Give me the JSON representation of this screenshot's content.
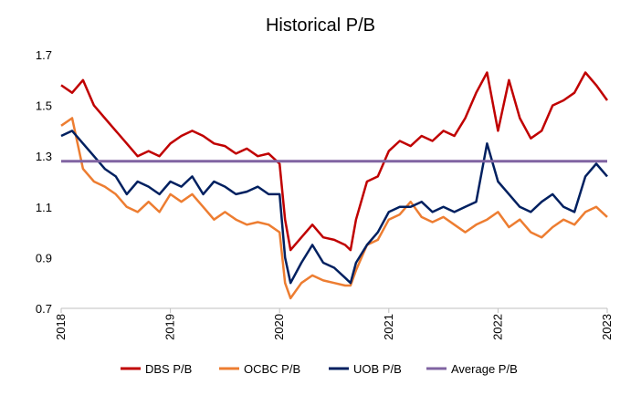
{
  "chart_data": {
    "type": "line",
    "title": "Historical P/B",
    "xlabel": "",
    "ylabel": "",
    "xlim": [
      2018,
      2023
    ],
    "ylim": [
      0.7,
      1.7
    ],
    "x_ticks": [
      "2018",
      "2019",
      "2020",
      "2021",
      "2022",
      "2023"
    ],
    "y_ticks": [
      "0.7",
      "0.9",
      "1.1",
      "1.3",
      "1.5",
      "1.7"
    ],
    "grid": false,
    "legend_position": "bottom",
    "series": [
      {
        "name": "DBS P/B",
        "color": "#c00000",
        "points": [
          [
            2018.0,
            1.58
          ],
          [
            2018.1,
            1.55
          ],
          [
            2018.2,
            1.6
          ],
          [
            2018.3,
            1.5
          ],
          [
            2018.4,
            1.45
          ],
          [
            2018.5,
            1.4
          ],
          [
            2018.6,
            1.35
          ],
          [
            2018.7,
            1.3
          ],
          [
            2018.8,
            1.32
          ],
          [
            2018.9,
            1.3
          ],
          [
            2019.0,
            1.35
          ],
          [
            2019.1,
            1.38
          ],
          [
            2019.2,
            1.4
          ],
          [
            2019.3,
            1.38
          ],
          [
            2019.4,
            1.35
          ],
          [
            2019.5,
            1.34
          ],
          [
            2019.6,
            1.31
          ],
          [
            2019.7,
            1.33
          ],
          [
            2019.8,
            1.3
          ],
          [
            2019.9,
            1.31
          ],
          [
            2020.0,
            1.27
          ],
          [
            2020.05,
            1.05
          ],
          [
            2020.1,
            0.93
          ],
          [
            2020.2,
            0.98
          ],
          [
            2020.3,
            1.03
          ],
          [
            2020.4,
            0.98
          ],
          [
            2020.5,
            0.97
          ],
          [
            2020.6,
            0.95
          ],
          [
            2020.65,
            0.93
          ],
          [
            2020.7,
            1.05
          ],
          [
            2020.8,
            1.2
          ],
          [
            2020.9,
            1.22
          ],
          [
            2021.0,
            1.32
          ],
          [
            2021.1,
            1.36
          ],
          [
            2021.2,
            1.34
          ],
          [
            2021.3,
            1.38
          ],
          [
            2021.4,
            1.36
          ],
          [
            2021.5,
            1.4
          ],
          [
            2021.6,
            1.38
          ],
          [
            2021.7,
            1.45
          ],
          [
            2021.8,
            1.55
          ],
          [
            2021.9,
            1.63
          ],
          [
            2022.0,
            1.4
          ],
          [
            2022.1,
            1.6
          ],
          [
            2022.2,
            1.45
          ],
          [
            2022.3,
            1.37
          ],
          [
            2022.4,
            1.4
          ],
          [
            2022.5,
            1.5
          ],
          [
            2022.6,
            1.52
          ],
          [
            2022.7,
            1.55
          ],
          [
            2022.8,
            1.63
          ],
          [
            2022.9,
            1.58
          ],
          [
            2023.0,
            1.52
          ]
        ]
      },
      {
        "name": "OCBC P/B",
        "color": "#ed7d31",
        "points": [
          [
            2018.0,
            1.42
          ],
          [
            2018.1,
            1.45
          ],
          [
            2018.2,
            1.25
          ],
          [
            2018.3,
            1.2
          ],
          [
            2018.4,
            1.18
          ],
          [
            2018.5,
            1.15
          ],
          [
            2018.6,
            1.1
          ],
          [
            2018.7,
            1.08
          ],
          [
            2018.8,
            1.12
          ],
          [
            2018.9,
            1.08
          ],
          [
            2019.0,
            1.15
          ],
          [
            2019.1,
            1.12
          ],
          [
            2019.2,
            1.15
          ],
          [
            2019.3,
            1.1
          ],
          [
            2019.4,
            1.05
          ],
          [
            2019.5,
            1.08
          ],
          [
            2019.6,
            1.05
          ],
          [
            2019.7,
            1.03
          ],
          [
            2019.8,
            1.04
          ],
          [
            2019.9,
            1.03
          ],
          [
            2020.0,
            1.0
          ],
          [
            2020.05,
            0.8
          ],
          [
            2020.1,
            0.74
          ],
          [
            2020.2,
            0.8
          ],
          [
            2020.3,
            0.83
          ],
          [
            2020.4,
            0.81
          ],
          [
            2020.5,
            0.8
          ],
          [
            2020.6,
            0.79
          ],
          [
            2020.65,
            0.79
          ],
          [
            2020.7,
            0.85
          ],
          [
            2020.8,
            0.95
          ],
          [
            2020.9,
            0.97
          ],
          [
            2021.0,
            1.05
          ],
          [
            2021.1,
            1.07
          ],
          [
            2021.2,
            1.12
          ],
          [
            2021.3,
            1.06
          ],
          [
            2021.4,
            1.04
          ],
          [
            2021.5,
            1.06
          ],
          [
            2021.6,
            1.03
          ],
          [
            2021.7,
            1.0
          ],
          [
            2021.8,
            1.03
          ],
          [
            2021.9,
            1.05
          ],
          [
            2022.0,
            1.08
          ],
          [
            2022.1,
            1.02
          ],
          [
            2022.2,
            1.05
          ],
          [
            2022.3,
            1.0
          ],
          [
            2022.4,
            0.98
          ],
          [
            2022.5,
            1.02
          ],
          [
            2022.6,
            1.05
          ],
          [
            2022.7,
            1.03
          ],
          [
            2022.8,
            1.08
          ],
          [
            2022.9,
            1.1
          ],
          [
            2023.0,
            1.06
          ]
        ]
      },
      {
        "name": "UOB P/B",
        "color": "#002060",
        "points": [
          [
            2018.0,
            1.38
          ],
          [
            2018.1,
            1.4
          ],
          [
            2018.2,
            1.35
          ],
          [
            2018.3,
            1.3
          ],
          [
            2018.4,
            1.25
          ],
          [
            2018.5,
            1.22
          ],
          [
            2018.6,
            1.15
          ],
          [
            2018.7,
            1.2
          ],
          [
            2018.8,
            1.18
          ],
          [
            2018.9,
            1.15
          ],
          [
            2019.0,
            1.2
          ],
          [
            2019.1,
            1.18
          ],
          [
            2019.2,
            1.22
          ],
          [
            2019.3,
            1.15
          ],
          [
            2019.4,
            1.2
          ],
          [
            2019.5,
            1.18
          ],
          [
            2019.6,
            1.15
          ],
          [
            2019.7,
            1.16
          ],
          [
            2019.8,
            1.18
          ],
          [
            2019.9,
            1.15
          ],
          [
            2020.0,
            1.15
          ],
          [
            2020.05,
            0.9
          ],
          [
            2020.1,
            0.8
          ],
          [
            2020.2,
            0.88
          ],
          [
            2020.3,
            0.95
          ],
          [
            2020.4,
            0.88
          ],
          [
            2020.5,
            0.86
          ],
          [
            2020.6,
            0.82
          ],
          [
            2020.65,
            0.8
          ],
          [
            2020.7,
            0.88
          ],
          [
            2020.8,
            0.95
          ],
          [
            2020.9,
            1.0
          ],
          [
            2021.0,
            1.08
          ],
          [
            2021.1,
            1.1
          ],
          [
            2021.2,
            1.1
          ],
          [
            2021.3,
            1.12
          ],
          [
            2021.4,
            1.08
          ],
          [
            2021.5,
            1.1
          ],
          [
            2021.6,
            1.08
          ],
          [
            2021.7,
            1.1
          ],
          [
            2021.8,
            1.12
          ],
          [
            2021.9,
            1.35
          ],
          [
            2022.0,
            1.2
          ],
          [
            2022.1,
            1.15
          ],
          [
            2022.2,
            1.1
          ],
          [
            2022.3,
            1.08
          ],
          [
            2022.4,
            1.12
          ],
          [
            2022.5,
            1.15
          ],
          [
            2022.6,
            1.1
          ],
          [
            2022.7,
            1.08
          ],
          [
            2022.8,
            1.22
          ],
          [
            2022.9,
            1.27
          ],
          [
            2023.0,
            1.22
          ]
        ]
      },
      {
        "name": "Average P/B",
        "color": "#8064a2",
        "points": [
          [
            2018.0,
            1.28
          ],
          [
            2023.0,
            1.28
          ]
        ]
      }
    ]
  }
}
